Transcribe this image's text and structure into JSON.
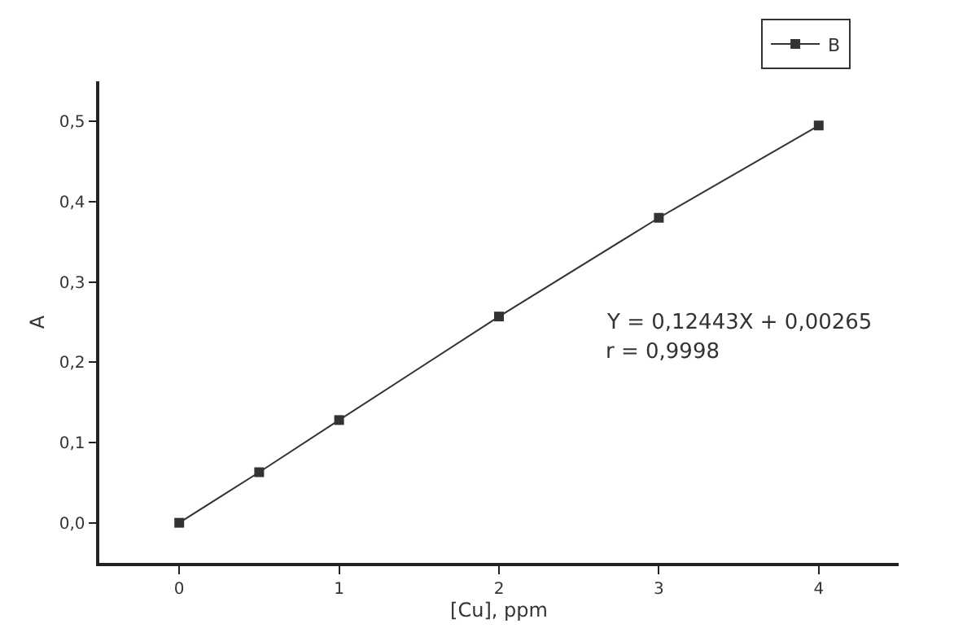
{
  "chart_data": {
    "type": "line",
    "xlabel": "[Cu], ppm",
    "ylabel": "A",
    "x": [
      0,
      0.5,
      1,
      2,
      3,
      4
    ],
    "series": [
      {
        "name": "B",
        "color": "#333333",
        "values": [
          0,
          0.063,
          0.128,
          0.257,
          0.38,
          0.495
        ]
      }
    ],
    "xlim": [
      -0.5,
      4.5
    ],
    "xticks": [
      0,
      1,
      2,
      3,
      4
    ],
    "ylim": [
      -0.05,
      0.55
    ],
    "yticks": [
      {
        "value": 0,
        "label": "0,0"
      },
      {
        "value": 0.1,
        "label": "0,1"
      },
      {
        "value": 0.2,
        "label": "0,2"
      },
      {
        "value": 0.3,
        "label": "0,3"
      },
      {
        "value": 0.4,
        "label": "0,4"
      },
      {
        "value": 0.5,
        "label": "0,5"
      }
    ],
    "annotations": [
      "Y = 0,12443X + 0,00265",
      "r = 0,9998"
    ],
    "marker": "square",
    "line_style": "solid",
    "legend": "top right",
    "grid": false
  }
}
